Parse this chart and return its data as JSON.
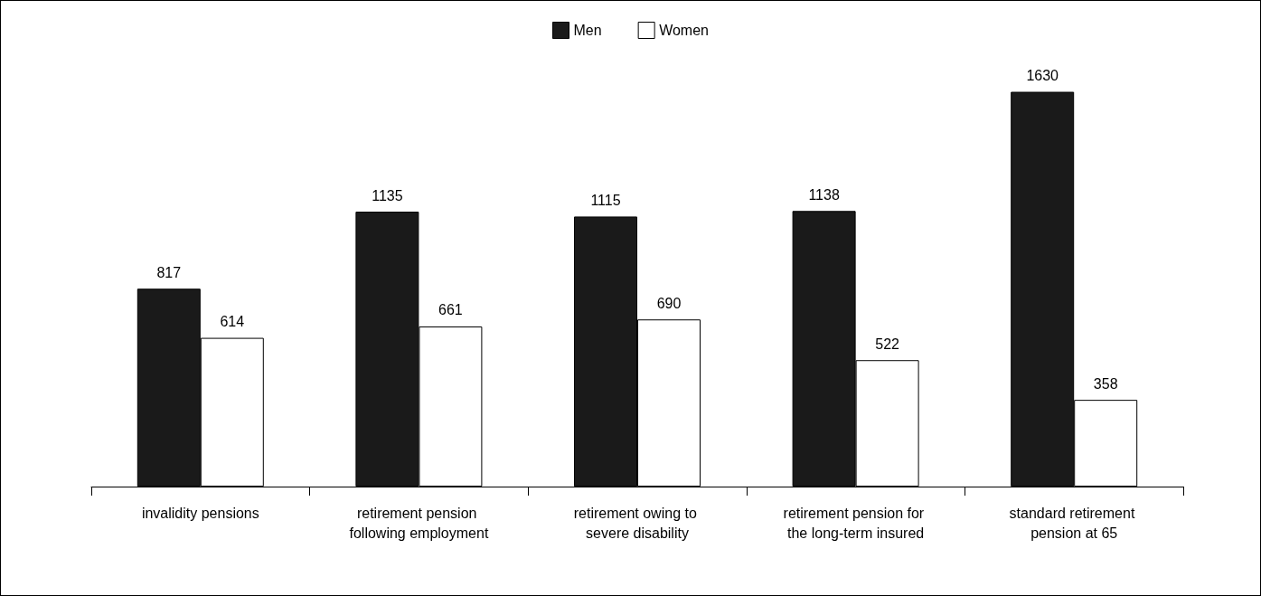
{
  "chart_data": {
    "type": "bar",
    "categories": [
      "invalidity pensions",
      "retirement pension following employment",
      "retirement owing to severe disability",
      "retirement pension for the long-term insured",
      "standard retirement pension at 65"
    ],
    "series": [
      {
        "name": "Men",
        "color": "#1a1a1a",
        "values": [
          817,
          1135,
          1115,
          1138,
          1630
        ]
      },
      {
        "name": "Women",
        "color": "#ffffff",
        "values": [
          614,
          661,
          690,
          522,
          358
        ]
      }
    ],
    "data_labels": true,
    "legend": "top",
    "grid": false
  }
}
